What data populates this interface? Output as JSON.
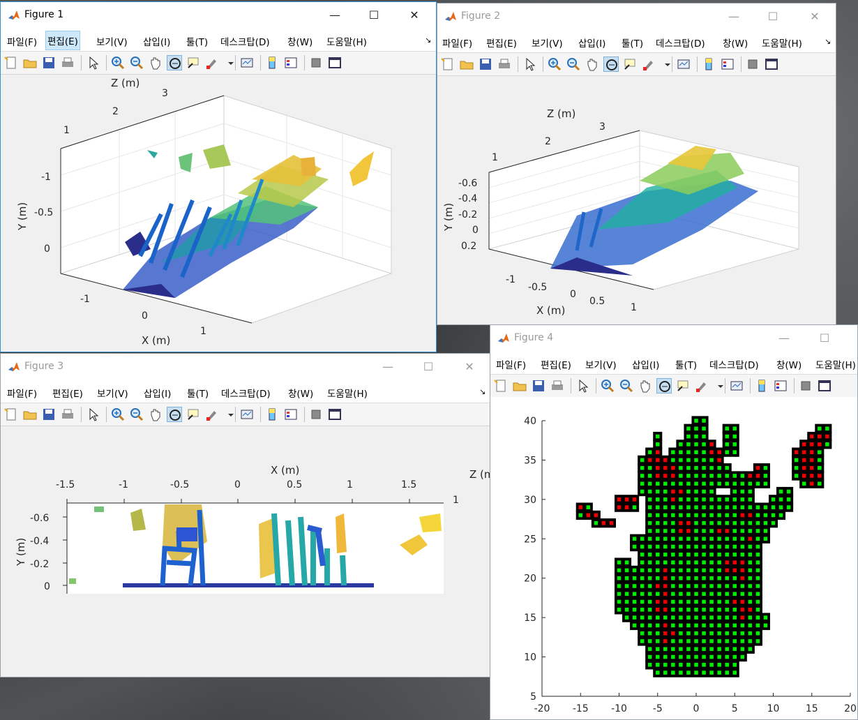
{
  "menu_labels": [
    "파일(F)",
    "편집(E)",
    "보기(V)",
    "삽입(I)",
    "툴(T)",
    "데스크탑(D)",
    "창(W)",
    "도움말(H)"
  ],
  "figure1": {
    "title": "Figure 1",
    "axes": {
      "z_label": "Z (m)",
      "y_label": "Y (m)",
      "x_label": "X (m)",
      "z_ticks": [
        "1",
        "2",
        "3"
      ],
      "y_ticks": [
        "-1",
        "-0.5",
        "0"
      ],
      "x_ticks": [
        "-1",
        "0",
        "1"
      ]
    }
  },
  "figure2": {
    "title": "Figure 2",
    "axes": {
      "z_label": "Z (m)",
      "y_label": "Y (m)",
      "x_label": "X (m)",
      "z_ticks": [
        "1",
        "2",
        "3"
      ],
      "y_ticks": [
        "-0.6",
        "-0.4",
        "-0.2",
        "0",
        "0.2"
      ],
      "x_ticks": [
        "-1",
        "-0.5",
        "0",
        "0.5",
        "1"
      ]
    }
  },
  "figure3": {
    "title": "Figure 3",
    "axes": {
      "x_label": "X (m)",
      "y_label": "Y (m)",
      "z_label": "Z (m",
      "x_ticks": [
        "-1.5",
        "-1",
        "-0.5",
        "0",
        "0.5",
        "1",
        "1.5"
      ],
      "y_ticks": [
        "-0.6",
        "-0.4",
        "-0.2",
        "0"
      ],
      "z_tick": "1"
    }
  },
  "figure4": {
    "title": "Figure 4",
    "chart_data": {
      "type": "scatter",
      "xlim": [
        -20,
        20
      ],
      "ylim": [
        5,
        40
      ],
      "x_ticks": [
        "-20",
        "-15",
        "-10",
        "-5",
        "0",
        "5",
        "10",
        "15",
        "20"
      ],
      "y_ticks": [
        "5",
        "10",
        "15",
        "20",
        "25",
        "30",
        "35",
        "40"
      ],
      "cell_colors": {
        "occupied": "#00ee00",
        "flagged": "#ee0000",
        "border": "#000000"
      },
      "rows": [
        {
          "y": 40,
          "cells": [
            [
              -0.5,
              0.5
            ]
          ]
        },
        {
          "y": 39,
          "cells": [
            [
              -1,
              1
            ],
            [
              4,
              5
            ],
            [
              16,
              17
            ]
          ]
        },
        {
          "y": 38,
          "cells": [
            [
              -5,
              -5
            ],
            [
              -1,
              1
            ],
            [
              4,
              5
            ],
            [
              15,
              17
            ]
          ]
        },
        {
          "y": 37,
          "cells": [
            [
              -5,
              -5
            ],
            [
              -2,
              2
            ],
            [
              4,
              5
            ],
            [
              14,
              17
            ]
          ]
        },
        {
          "y": 36,
          "cells": [
            [
              -6,
              -5
            ],
            [
              -3,
              3
            ],
            [
              4,
              5
            ],
            [
              13,
              16
            ]
          ]
        },
        {
          "y": 35,
          "cells": [
            [
              -7,
              3
            ],
            [
              13,
              16
            ]
          ]
        },
        {
          "y": 34,
          "cells": [
            [
              -7,
              4
            ],
            [
              8,
              9
            ],
            [
              13,
              16
            ]
          ]
        },
        {
          "y": 33,
          "cells": [
            [
              -7,
              9
            ],
            [
              13,
              16
            ]
          ]
        },
        {
          "y": 32,
          "cells": [
            [
              -7,
              9
            ],
            [
              14,
              16
            ]
          ]
        },
        {
          "y": 31,
          "cells": [
            [
              -7,
              2
            ],
            [
              5,
              7
            ],
            [
              11,
              12
            ]
          ]
        },
        {
          "y": 30,
          "cells": [
            [
              -10,
              -8
            ],
            [
              -6,
              7
            ],
            [
              10,
              12
            ]
          ]
        },
        {
          "y": 29,
          "cells": [
            [
              -15,
              -14
            ],
            [
              -10,
              -8
            ],
            [
              -6,
              8
            ],
            [
              9,
              12
            ]
          ]
        },
        {
          "y": 28,
          "cells": [
            [
              -15,
              -13
            ],
            [
              -6,
              11
            ]
          ]
        },
        {
          "y": 27,
          "cells": [
            [
              -13,
              -11
            ],
            [
              -6,
              10
            ]
          ]
        },
        {
          "y": 26,
          "cells": [
            [
              -6,
              9
            ]
          ]
        },
        {
          "y": 25,
          "cells": [
            [
              -8,
              9
            ]
          ]
        },
        {
          "y": 24,
          "cells": [
            [
              -8,
              8
            ]
          ]
        },
        {
          "y": 23,
          "cells": [
            [
              -7,
              8
            ]
          ]
        },
        {
          "y": 22,
          "cells": [
            [
              -10,
              -9
            ],
            [
              -7,
              8
            ]
          ]
        },
        {
          "y": 21,
          "cells": [
            [
              -10,
              8
            ]
          ]
        },
        {
          "y": 20,
          "cells": [
            [
              -10,
              8
            ]
          ]
        },
        {
          "y": 19,
          "cells": [
            [
              -10,
              8
            ]
          ]
        },
        {
          "y": 18,
          "cells": [
            [
              -10,
              8
            ]
          ]
        },
        {
          "y": 17,
          "cells": [
            [
              -10,
              8
            ]
          ]
        },
        {
          "y": 16,
          "cells": [
            [
              -10,
              8
            ]
          ]
        },
        {
          "y": 15,
          "cells": [
            [
              -9,
              9
            ]
          ]
        },
        {
          "y": 14,
          "cells": [
            [
              -8,
              9
            ]
          ]
        },
        {
          "y": 13,
          "cells": [
            [
              -7,
              8
            ]
          ]
        },
        {
          "y": 12,
          "cells": [
            [
              -7,
              8
            ]
          ]
        },
        {
          "y": 11,
          "cells": [
            [
              -6,
              7
            ]
          ]
        },
        {
          "y": 10,
          "cells": [
            [
              -6,
              6
            ]
          ]
        },
        {
          "y": 9,
          "cells": [
            [
              -6,
              5
            ]
          ]
        },
        {
          "y": 8,
          "cells": [
            [
              -5,
              5
            ]
          ]
        }
      ],
      "flagged_cells": [
        [
          -6,
          38
        ],
        [
          -6,
          37
        ],
        [
          -5,
          36
        ],
        [
          -4,
          36
        ],
        [
          -6,
          35
        ],
        [
          -5,
          35
        ],
        [
          -4,
          35
        ],
        [
          -5,
          34
        ],
        [
          -4,
          34
        ],
        [
          -3,
          34
        ],
        [
          -5,
          33
        ],
        [
          -4,
          33
        ],
        [
          -3,
          33
        ],
        [
          2,
          37
        ],
        [
          3,
          36
        ],
        [
          3,
          35
        ],
        [
          4,
          35
        ],
        [
          2,
          36
        ],
        [
          -10,
          30
        ],
        [
          -9,
          30
        ],
        [
          -8,
          30
        ],
        [
          -10,
          29
        ],
        [
          -9,
          29
        ],
        [
          -15,
          29
        ],
        [
          -14,
          28
        ],
        [
          -13,
          28
        ],
        [
          -12,
          27
        ],
        [
          -11,
          27
        ],
        [
          -3,
          31
        ],
        [
          -2,
          31
        ],
        [
          -3,
          30
        ],
        [
          3,
          26
        ],
        [
          4,
          26
        ],
        [
          7,
          34
        ],
        [
          8,
          34
        ],
        [
          8,
          33
        ],
        [
          7,
          33
        ],
        [
          14,
          39
        ],
        [
          15,
          38
        ],
        [
          16,
          38
        ],
        [
          17,
          38
        ],
        [
          13,
          37
        ],
        [
          14,
          37
        ],
        [
          15,
          37
        ],
        [
          16,
          37
        ],
        [
          13,
          36
        ],
        [
          14,
          36
        ],
        [
          15,
          36
        ],
        [
          14,
          35
        ],
        [
          15,
          35
        ],
        [
          14,
          34
        ],
        [
          15,
          34
        ],
        [
          14,
          33
        ],
        [
          15,
          33
        ],
        [
          16,
          33
        ],
        [
          15,
          32
        ],
        [
          6,
          28
        ],
        [
          7,
          28
        ],
        [
          -4,
          21
        ],
        [
          -4,
          20
        ],
        [
          -5,
          19
        ],
        [
          -4,
          19
        ],
        [
          -4,
          18
        ],
        [
          -5,
          17
        ],
        [
          -4,
          17
        ],
        [
          -5,
          16
        ],
        [
          -4,
          16
        ],
        [
          -4,
          14
        ],
        [
          -4,
          13
        ],
        [
          -3,
          13
        ],
        [
          -4,
          12
        ],
        [
          4,
          22
        ],
        [
          5,
          22
        ],
        [
          6,
          22
        ],
        [
          4,
          21
        ],
        [
          5,
          21
        ],
        [
          6,
          21
        ],
        [
          6,
          20
        ],
        [
          7,
          25
        ],
        [
          5,
          17
        ],
        [
          6,
          17
        ],
        [
          6,
          16
        ],
        [
          7,
          16
        ],
        [
          6,
          15
        ],
        [
          -2,
          27
        ],
        [
          -1,
          27
        ],
        [
          -1,
          26
        ],
        [
          -2,
          26
        ]
      ]
    }
  }
}
